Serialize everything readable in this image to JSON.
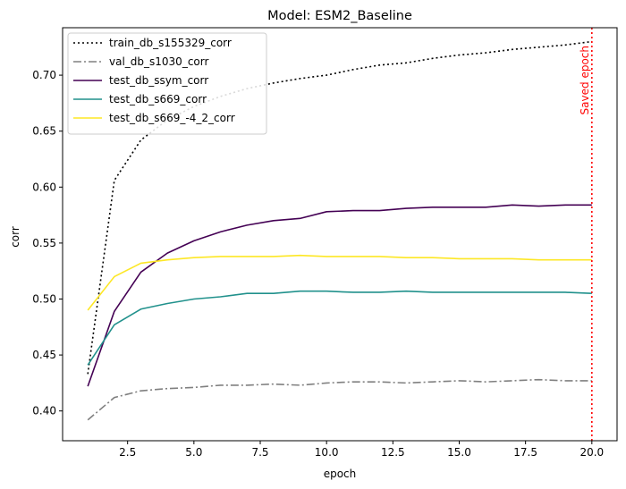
{
  "chart_data": {
    "type": "line",
    "title": "Model: ESM2_Baseline",
    "xlabel": "epoch",
    "ylabel": "corr",
    "xlim": [
      0.05,
      20.95
    ],
    "ylim": [
      0.3734,
      0.7424
    ],
    "xticks": [
      2.5,
      5.0,
      7.5,
      10.0,
      12.5,
      15.0,
      17.5,
      20.0
    ],
    "xtick_labels": [
      "2.5",
      "5.0",
      "7.5",
      "10.0",
      "12.5",
      "15.0",
      "17.5",
      "20.0"
    ],
    "yticks": [
      0.4,
      0.45,
      0.5,
      0.55,
      0.6,
      0.65,
      0.7
    ],
    "ytick_labels": [
      "0.40",
      "0.45",
      "0.50",
      "0.55",
      "0.60",
      "0.65",
      "0.70"
    ],
    "grid": false,
    "legend_position": "top-left",
    "x": [
      1,
      2,
      3,
      4,
      5,
      6,
      7,
      8,
      9,
      10,
      11,
      12,
      13,
      14,
      15,
      16,
      17,
      18,
      19,
      20
    ],
    "series": [
      {
        "name": "train_db_s155329_corr",
        "color": "#000000",
        "dash": "dotted",
        "values": [
          0.433,
          0.606,
          0.642,
          0.66,
          0.672,
          0.681,
          0.688,
          0.693,
          0.697,
          0.7,
          0.705,
          0.709,
          0.711,
          0.715,
          0.718,
          0.72,
          0.723,
          0.725,
          0.727,
          0.73
        ]
      },
      {
        "name": "val_db_s1030_corr",
        "color": "#808080",
        "dash": "dashdot",
        "values": [
          0.392,
          0.412,
          0.418,
          0.42,
          0.421,
          0.423,
          0.423,
          0.424,
          0.423,
          0.425,
          0.426,
          0.426,
          0.425,
          0.426,
          0.427,
          0.426,
          0.427,
          0.428,
          0.427,
          0.427
        ]
      },
      {
        "name": "test_db_ssym_corr",
        "color": "#440154",
        "dash": "solid",
        "values": [
          0.422,
          0.489,
          0.524,
          0.541,
          0.552,
          0.56,
          0.566,
          0.57,
          0.572,
          0.578,
          0.579,
          0.579,
          0.581,
          0.582,
          0.582,
          0.582,
          0.584,
          0.583,
          0.584,
          0.584
        ]
      },
      {
        "name": "test_db_s669_corr",
        "color": "#21918c",
        "dash": "solid",
        "values": [
          0.441,
          0.477,
          0.491,
          0.496,
          0.5,
          0.502,
          0.505,
          0.505,
          0.507,
          0.507,
          0.506,
          0.506,
          0.507,
          0.506,
          0.506,
          0.506,
          0.506,
          0.506,
          0.506,
          0.505
        ]
      },
      {
        "name": "test_db_s669_-4_2_corr",
        "color": "#fde725",
        "dash": "solid",
        "values": [
          0.49,
          0.52,
          0.532,
          0.535,
          0.537,
          0.538,
          0.538,
          0.538,
          0.539,
          0.538,
          0.538,
          0.538,
          0.537,
          0.537,
          0.536,
          0.536,
          0.536,
          0.535,
          0.535,
          0.535
        ]
      }
    ],
    "annotation": {
      "text": "Saved epoch",
      "x": 20,
      "color": "#ff0000",
      "style": "dotted vertical line"
    }
  }
}
